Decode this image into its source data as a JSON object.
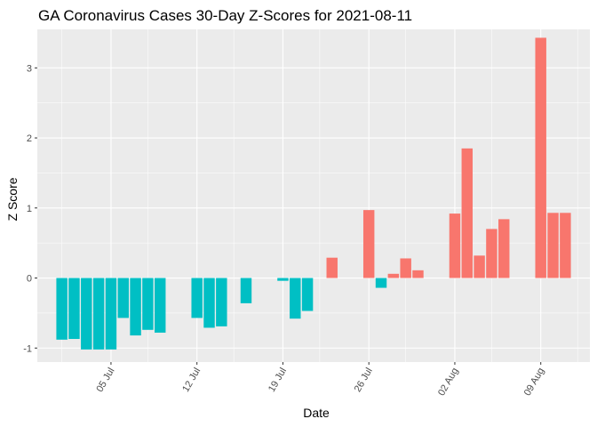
{
  "chart_data": {
    "type": "bar",
    "title": "GA Coronavirus Cases 30-Day Z-Scores for 2021-08-11",
    "xlabel": "Date",
    "ylabel": "Z Score",
    "ylim": [
      -1.2,
      3.55
    ],
    "y_ticks": [
      -1,
      0,
      1,
      2,
      3
    ],
    "x_ticks": [
      {
        "date": "2021-07-05",
        "label": "05 Jul"
      },
      {
        "date": "2021-07-12",
        "label": "12 Jul"
      },
      {
        "date": "2021-07-19",
        "label": "19 Jul"
      },
      {
        "date": "2021-07-26",
        "label": "26 Jul"
      },
      {
        "date": "2021-08-02",
        "label": "02 Aug"
      },
      {
        "date": "2021-08-09",
        "label": "09 Aug"
      }
    ],
    "x_range": [
      "2021-06-29",
      "2021-08-13"
    ],
    "grid": true,
    "legend": "none",
    "colors": {
      "positive": "#F8766D",
      "negative": "#00BFC4",
      "panel_background": "#EBEBEB",
      "grid": "#FFFFFF"
    },
    "points": [
      {
        "date": "2021-07-01",
        "value": -0.88
      },
      {
        "date": "2021-07-02",
        "value": -0.87
      },
      {
        "date": "2021-07-03",
        "value": -1.02
      },
      {
        "date": "2021-07-04",
        "value": -1.02
      },
      {
        "date": "2021-07-05",
        "value": -1.02
      },
      {
        "date": "2021-07-06",
        "value": -0.57
      },
      {
        "date": "2021-07-07",
        "value": -0.82
      },
      {
        "date": "2021-07-08",
        "value": -0.74
      },
      {
        "date": "2021-07-09",
        "value": -0.78
      },
      {
        "date": "2021-07-12",
        "value": -0.57
      },
      {
        "date": "2021-07-13",
        "value": -0.71
      },
      {
        "date": "2021-07-14",
        "value": -0.69
      },
      {
        "date": "2021-07-16",
        "value": -0.36
      },
      {
        "date": "2021-07-19",
        "value": -0.04
      },
      {
        "date": "2021-07-20",
        "value": -0.58
      },
      {
        "date": "2021-07-21",
        "value": -0.47
      },
      {
        "date": "2021-07-23",
        "value": 0.29
      },
      {
        "date": "2021-07-26",
        "value": 0.97
      },
      {
        "date": "2021-07-27",
        "value": -0.14
      },
      {
        "date": "2021-07-28",
        "value": 0.06
      },
      {
        "date": "2021-07-29",
        "value": 0.28
      },
      {
        "date": "2021-07-30",
        "value": 0.11
      },
      {
        "date": "2021-08-02",
        "value": 0.92
      },
      {
        "date": "2021-08-03",
        "value": 1.85
      },
      {
        "date": "2021-08-04",
        "value": 0.32
      },
      {
        "date": "2021-08-05",
        "value": 0.7
      },
      {
        "date": "2021-08-06",
        "value": 0.84
      },
      {
        "date": "2021-08-09",
        "value": 3.43
      },
      {
        "date": "2021-08-10",
        "value": 0.93
      },
      {
        "date": "2021-08-11",
        "value": 0.93
      }
    ]
  }
}
